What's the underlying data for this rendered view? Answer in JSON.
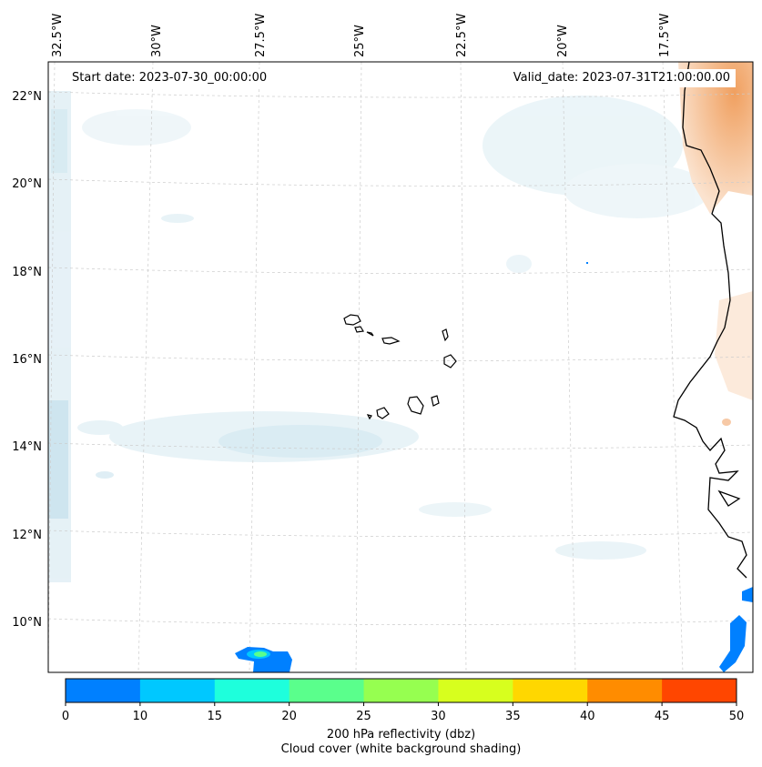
{
  "map": {
    "info": {
      "start_label": "Start date: 2023-07-30_00:00:00",
      "valid_label": "Valid_date: 2023-07-31T21:00:00.00"
    },
    "longitude_labels": [
      "32.5°W",
      "30°W",
      "27.5°W",
      "25°W",
      "22.5°W",
      "20°W",
      "17.5°W"
    ],
    "latitude_labels": [
      "22°N",
      "20°N",
      "18°N",
      "16°N",
      "14°N",
      "12°N",
      "10°N"
    ],
    "colors": {
      "cloud_shading": "#d9ecf3",
      "dust_shading": "#f4b47a",
      "coastline": "#000000",
      "gridline": "#cccccc"
    }
  },
  "colorbar": {
    "ticks": [
      "0",
      "10",
      "15",
      "20",
      "25",
      "30",
      "35",
      "40",
      "45",
      "50"
    ],
    "colors": [
      "#0080ff",
      "#00c8ff",
      "#1effdc",
      "#5aff8c",
      "#96ff50",
      "#d7ff1e",
      "#ffd700",
      "#ff8c00",
      "#ff4600"
    ],
    "label_line1": "200 hPa reflectivity (dbz)",
    "label_line2": "Cloud cover (white background shading)"
  }
}
